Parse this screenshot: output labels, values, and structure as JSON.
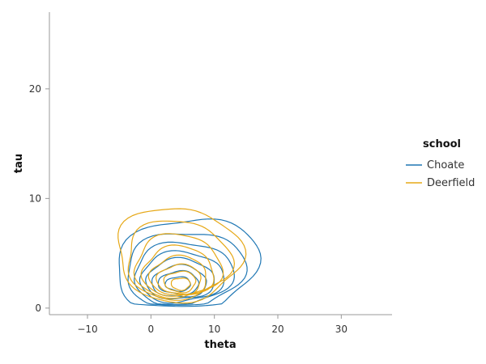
{
  "chart_data": {
    "type": "contour",
    "xlabel": "theta",
    "ylabel": "tau",
    "xlim": [
      -16,
      38
    ],
    "ylim": [
      -0.6,
      27
    ],
    "xticks": [
      -10,
      0,
      10,
      20,
      30
    ],
    "yticks": [
      0,
      10,
      20
    ],
    "xtick_labels": [
      "−10",
      "0",
      "10",
      "20",
      "30"
    ],
    "ytick_labels": [
      "0",
      "10",
      "20"
    ],
    "grid": false,
    "legend": {
      "title": "school",
      "position": "right",
      "entries": [
        "Choate",
        "Deerfield"
      ]
    },
    "series": [
      {
        "name": "Choate",
        "color": "#1f77b4",
        "kde_levels": [
          {
            "center": [
              5.6,
              3.7
            ],
            "halfwidth": [
              11.0,
              4.6
            ],
            "skew": 0.3
          },
          {
            "center": [
              5.3,
              3.4
            ],
            "halfwidth": [
              9.3,
              3.6
            ],
            "skew": 0.2
          },
          {
            "center": [
              5.0,
              3.1
            ],
            "halfwidth": [
              7.8,
              2.9
            ],
            "skew": 0.15
          },
          {
            "center": [
              4.8,
              2.8
            ],
            "halfwidth": [
              6.6,
              2.3
            ],
            "skew": 0.1
          },
          {
            "center": [
              4.6,
              2.6
            ],
            "halfwidth": [
              5.4,
              1.85
            ],
            "skew": 0.05
          },
          {
            "center": [
              4.5,
              2.4
            ],
            "halfwidth": [
              4.3,
              1.45
            ],
            "skew": 0.0
          },
          {
            "center": [
              4.4,
              2.3
            ],
            "halfwidth": [
              3.2,
              1.05
            ],
            "skew": 0.0
          },
          {
            "center": [
              4.3,
              2.2
            ],
            "halfwidth": [
              2.0,
              0.65
            ],
            "skew": 0.0
          }
        ]
      },
      {
        "name": "Deerfield",
        "color": "#e6a817",
        "kde_levels": [
          {
            "center": [
              4.3,
              4.9
            ],
            "halfwidth": [
              9.8,
              4.3
            ],
            "skew": -0.1
          },
          {
            "center": [
              4.2,
              4.4
            ],
            "halfwidth": [
              8.2,
              3.6
            ],
            "skew": -0.05
          },
          {
            "center": [
              4.2,
              3.8
            ],
            "halfwidth": [
              6.8,
              2.9
            ],
            "skew": 0.0
          },
          {
            "center": [
              4.3,
              3.3
            ],
            "halfwidth": [
              5.6,
              2.3
            ],
            "skew": 0.0
          },
          {
            "center": [
              4.4,
              2.9
            ],
            "halfwidth": [
              4.5,
              1.8
            ],
            "skew": 0.0
          },
          {
            "center": [
              4.5,
              2.6
            ],
            "halfwidth": [
              3.5,
              1.35
            ],
            "skew": 0.0
          },
          {
            "center": [
              4.6,
              2.4
            ],
            "halfwidth": [
              2.5,
              0.95
            ],
            "skew": 0.0
          },
          {
            "center": [
              4.7,
              2.2
            ],
            "halfwidth": [
              1.5,
              0.55
            ],
            "skew": 0.0
          }
        ]
      }
    ]
  }
}
